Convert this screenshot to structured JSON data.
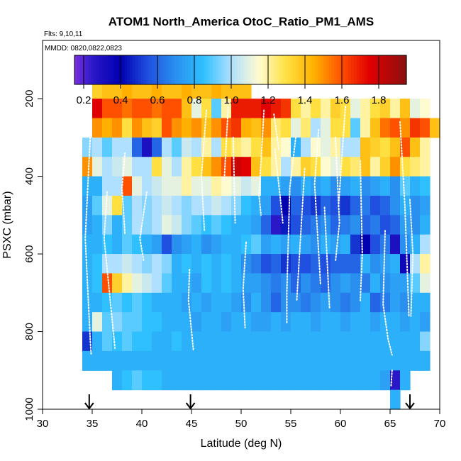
{
  "chart_data": {
    "type": "heatmap",
    "title": "ATOM1 North_America OtoC_Ratio_PM1_AMS",
    "flights_label": "Flts: 9,10,11",
    "dates_label": "MMDD: 0820,0822,0823",
    "xlabel": "Latitude (deg N)",
    "ylabel": "PSXC (mbar)",
    "xlim": [
      30,
      70
    ],
    "ylim": [
      1000,
      50
    ],
    "x_ticks": [
      30,
      35,
      40,
      45,
      50,
      55,
      60,
      65,
      70
    ],
    "y_ticks": [
      200,
      400,
      600,
      800,
      1000
    ],
    "colorbar": {
      "range": [
        0.15,
        1.95
      ],
      "ticks": [
        0.2,
        0.4,
        0.6,
        0.8,
        1.0,
        1.2,
        1.4,
        1.6,
        1.8
      ],
      "tick_labels": [
        "0.2",
        "0.4",
        "0.6",
        "0.8",
        "1.0",
        "1.2",
        "1.4",
        "1.6",
        "1.8"
      ],
      "stops": [
        [
          0.15,
          "#7b2fe0"
        ],
        [
          0.25,
          "#2a18c8"
        ],
        [
          0.4,
          "#0000b0"
        ],
        [
          0.55,
          "#2050e0"
        ],
        [
          0.7,
          "#2a90f0"
        ],
        [
          0.85,
          "#2fc0ff"
        ],
        [
          1.0,
          "#b0e0ff"
        ],
        [
          1.15,
          "#fffbd0"
        ],
        [
          1.3,
          "#ffe040"
        ],
        [
          1.45,
          "#ffb000"
        ],
        [
          1.6,
          "#ff5000"
        ],
        [
          1.75,
          "#e00000"
        ],
        [
          1.95,
          "#8a1010"
        ]
      ]
    },
    "arrow_latitudes": [
      34.7,
      44.9,
      67.0
    ],
    "cell_size": {
      "lat": 1.0,
      "pressure": 50
    },
    "rows": [
      {
        "p": 175,
        "start": 35,
        "values": [
          1.35,
          1.4,
          1.4,
          1.45,
          1.4,
          1.4,
          1.45,
          1.4,
          1.4,
          1.45,
          1.4,
          1.4,
          1.45,
          1.4,
          1.4,
          1.4
        ]
      },
      {
        "p": 225,
        "start": 35,
        "values": [
          1.75,
          1.6,
          1.6,
          1.55,
          1.6,
          1.6,
          1.55,
          1.6,
          1.6,
          1.4,
          1.1,
          1.3,
          0.9,
          1.2,
          1.7,
          1.7,
          1.7,
          1.75,
          1.7,
          1.65,
          1.3,
          1.2,
          1.3,
          1.2,
          1.35,
          1.3,
          1.1,
          1.2,
          1.3,
          1.35,
          1.2,
          1.4,
          1.1,
          1.15
        ]
      },
      {
        "p": 275,
        "start": 35,
        "values": [
          1.5,
          1.45,
          1.5,
          1.3,
          1.5,
          1.4,
          1.35,
          1.6,
          1.5,
          1.45,
          1.5,
          1.4,
          1.5,
          1.6,
          1.65,
          1.45,
          1.4,
          1.5,
          1.25,
          1.3,
          1.1,
          1.25,
          1.0,
          1.1,
          1.3,
          1.3,
          0.9,
          1.2,
          1.4,
          1.55,
          1.6,
          1.5,
          1.65,
          1.6,
          1.4
        ]
      },
      {
        "p": 325,
        "start": 34,
        "values": [
          0.95,
          1.0,
          0.9,
          1.0,
          1.0,
          0.6,
          0.3,
          0.6,
          1.0,
          0.9,
          1.05,
          1.0,
          1.2,
          1.0,
          1.3,
          1.25,
          1.2,
          1.3,
          1.4,
          1.2,
          1.15,
          0.8,
          1.0,
          1.15,
          1.1,
          1.2,
          1.0,
          1.0,
          1.4,
          1.35,
          1.3,
          1.4,
          1.6,
          1.4,
          1.2
        ]
      },
      {
        "p": 375,
        "start": 34,
        "values": [
          1.5,
          1.1,
          1.0,
          1.05,
          1.1,
          1.0,
          1.0,
          1.3,
          1.1,
          1.0,
          1.2,
          1.3,
          1.4,
          1.5,
          1.6,
          1.8,
          1.75,
          1.4,
          1.3,
          1.2,
          1.0,
          1.2,
          1.35,
          1.3,
          1.15,
          1.1,
          1.3,
          1.25,
          1.4,
          1.2,
          1.35,
          1.5,
          1.3,
          1.25,
          1.2
        ]
      },
      {
        "p": 425,
        "start": 34,
        "values": [
          0.8,
          0.8,
          1.0,
          1.0,
          1.6,
          1.1,
          1.0,
          1.05,
          1.1,
          1.1,
          1.2,
          1.1,
          1.1,
          1.2,
          1.15,
          1.1,
          1.05,
          1.1,
          0.8,
          0.8,
          0.75,
          0.7,
          0.8,
          0.75,
          0.8,
          0.7,
          0.75,
          0.8,
          0.7,
          0.75,
          0.8,
          0.7,
          0.9,
          0.8,
          0.85
        ]
      },
      {
        "p": 475,
        "start": 34,
        "values": [
          0.75,
          0.9,
          1.1,
          1.3,
          0.9,
          1.0,
          0.95,
          1.0,
          1.05,
          1.0,
          0.95,
          1.0,
          1.0,
          1.05,
          1.0,
          0.95,
          0.85,
          0.8,
          0.75,
          0.55,
          0.4,
          0.6,
          0.55,
          0.5,
          0.6,
          0.55,
          0.5,
          0.6,
          0.65,
          0.55,
          0.6,
          0.7,
          0.8,
          0.7,
          0.75
        ]
      },
      {
        "p": 525,
        "start": 34,
        "values": [
          0.75,
          0.8,
          0.95,
          0.8,
          0.9,
          1.0,
          0.95,
          1.0,
          1.1,
          1.05,
          0.95,
          0.9,
          0.85,
          0.9,
          0.85,
          0.8,
          0.8,
          0.75,
          0.6,
          0.25,
          0.45,
          0.55,
          0.6,
          0.65,
          0.7,
          0.6,
          0.65,
          0.7,
          0.6,
          0.65,
          0.55,
          0.6,
          0.75,
          0.7,
          0.8
        ]
      },
      {
        "p": 575,
        "start": 34,
        "values": [
          0.8,
          0.8,
          0.85,
          0.8,
          0.9,
          0.85,
          0.8,
          0.75,
          0.55,
          0.7,
          0.75,
          0.8,
          0.7,
          0.75,
          0.8,
          0.8,
          0.85,
          0.9,
          0.75,
          0.8,
          0.75,
          0.8,
          0.75,
          0.7,
          0.8,
          0.75,
          0.8,
          0.5,
          0.4,
          0.55,
          0.65,
          0.3,
          0.7,
          0.8,
          1.0
        ]
      },
      {
        "p": 625,
        "start": 34,
        "values": [
          0.8,
          0.85,
          1.0,
          1.0,
          1.05,
          1.0,
          0.95,
          1.0,
          0.95,
          0.8,
          0.85,
          0.8,
          0.85,
          0.8,
          0.85,
          0.8,
          0.7,
          0.65,
          0.55,
          0.6,
          0.5,
          0.55,
          0.55,
          0.6,
          0.55,
          0.6,
          0.6,
          0.6,
          0.8,
          0.7,
          0.75,
          0.8,
          0.35,
          1.0,
          1.2
        ]
      },
      {
        "p": 675,
        "start": 34,
        "values": [
          0.8,
          0.85,
          1.6,
          1.35,
          1.2,
          1.1,
          1.05,
          1.0,
          0.9,
          0.8,
          0.8,
          0.75,
          0.85,
          0.8,
          0.85,
          0.8,
          0.75,
          0.75,
          0.7,
          0.65,
          0.7,
          0.6,
          0.7,
          0.65,
          0.6,
          0.7,
          0.75,
          0.7,
          0.65,
          0.8,
          0.7,
          0.75,
          0.75,
          0.9,
          1.1
        ]
      },
      {
        "p": 725,
        "start": 34,
        "values": [
          0.8,
          0.8,
          0.85,
          0.9,
          0.85,
          0.9,
          0.85,
          0.8,
          0.8,
          0.8,
          0.75,
          0.8,
          0.75,
          0.8,
          0.8,
          0.75,
          0.7,
          0.8,
          0.7,
          0.6,
          0.7,
          0.7,
          0.65,
          0.7,
          0.75,
          0.7,
          0.65,
          0.7,
          0.8,
          0.6,
          0.65,
          0.75,
          0.7,
          0.8,
          0.8
        ]
      },
      {
        "p": 775,
        "start": 34,
        "values": [
          0.8,
          1.1,
          0.9,
          0.95,
          0.9,
          0.9,
          0.85,
          0.85,
          0.8,
          0.8,
          0.8,
          0.75,
          0.8,
          0.8,
          0.75,
          0.8,
          0.8,
          0.75,
          0.75,
          0.8,
          0.75,
          0.8,
          0.8,
          0.75,
          0.8,
          0.8,
          0.75,
          0.8,
          0.8,
          0.75,
          0.8,
          0.8,
          0.75,
          0.8,
          0.75
        ]
      },
      {
        "p": 825,
        "start": 34,
        "values": [
          0.5,
          0.8,
          0.9,
          0.85,
          0.9,
          0.85,
          0.85,
          0.8,
          0.8,
          0.85,
          0.8,
          0.8,
          0.8,
          0.8,
          0.8,
          0.8,
          0.8,
          0.8,
          0.8,
          0.8,
          0.8,
          0.8,
          0.8,
          0.8,
          0.8,
          0.8,
          0.8,
          0.8,
          0.8,
          0.8,
          0.8,
          0.8,
          0.8,
          0.8,
          0.95
        ]
      },
      {
        "p": 875,
        "start": 34,
        "values": [
          0.8,
          0.8,
          0.8,
          0.8,
          0.8,
          0.8,
          0.8,
          0.8,
          0.8,
          0.8,
          0.8,
          0.8,
          0.8,
          0.8,
          0.8,
          0.8,
          0.8,
          0.8,
          0.8,
          0.8,
          0.8,
          0.8,
          0.8,
          0.8,
          0.8,
          0.8,
          0.8,
          0.8,
          0.8,
          0.8,
          0.8,
          0.8,
          0.8,
          0.8,
          0.8
        ]
      },
      {
        "p": 925,
        "start": 37,
        "values": [
          0.8,
          0.85,
          0.9,
          0.85,
          0.85,
          0.8,
          0.8,
          0.8,
          0.8,
          0.8,
          0.8,
          0.8,
          0.8,
          0.8,
          0.8,
          0.8,
          0.8,
          0.8,
          0.8,
          0.8,
          0.8,
          0.8,
          0.8,
          0.8,
          0.8,
          0.8,
          0.8,
          0.75,
          0.25,
          0.8
        ]
      },
      {
        "p": 975,
        "start": 65,
        "values": [
          0.8
        ]
      }
    ],
    "profiles": [
      [
        [
          34.8,
          300
        ],
        [
          34.3,
          560
        ],
        [
          34.8,
          820
        ],
        [
          34.9,
          860
        ]
      ],
      [
        [
          36.5,
          440
        ],
        [
          36.2,
          560
        ],
        [
          37.3,
          845
        ]
      ],
      [
        [
          38.3,
          340
        ],
        [
          38.0,
          430
        ],
        [
          38.3,
          550
        ]
      ],
      [
        [
          40.5,
          440
        ],
        [
          39.8,
          560
        ],
        [
          40.2,
          620
        ]
      ],
      [
        [
          44.8,
          640
        ],
        [
          44.7,
          720
        ],
        [
          45.2,
          850
        ]
      ],
      [
        [
          46.5,
          230
        ],
        [
          46.0,
          400
        ],
        [
          46.3,
          540
        ]
      ],
      [
        [
          48.7,
          220
        ],
        [
          48.3,
          410
        ]
      ],
      [
        [
          49.2,
          300
        ],
        [
          49.4,
          520
        ]
      ],
      [
        [
          50.5,
          570
        ],
        [
          50.2,
          690
        ],
        [
          50.4,
          790
        ]
      ],
      [
        [
          52.3,
          230
        ],
        [
          51.8,
          450
        ],
        [
          52.0,
          500
        ]
      ],
      [
        [
          53.3,
          240
        ],
        [
          53.8,
          330
        ]
      ],
      [
        [
          53.4,
          330
        ],
        [
          54.0,
          470
        ],
        [
          54.2,
          520
        ]
      ],
      [
        [
          55.5,
          300
        ],
        [
          54.9,
          430
        ],
        [
          54.6,
          700
        ],
        [
          54.6,
          780
        ]
      ],
      [
        [
          56.4,
          380
        ],
        [
          55.6,
          720
        ]
      ],
      [
        [
          57.8,
          280
        ],
        [
          57.4,
          420
        ],
        [
          58.0,
          680
        ]
      ],
      [
        [
          58.4,
          480
        ],
        [
          58.9,
          740
        ]
      ],
      [
        [
          59.5,
          300
        ],
        [
          59.9,
          520
        ],
        [
          59.5,
          620
        ]
      ],
      [
        [
          60.5,
          220
        ],
        [
          59.8,
          480
        ]
      ],
      [
        [
          62.0,
          360
        ],
        [
          62.2,
          600
        ],
        [
          62.0,
          720
        ]
      ],
      [
        [
          64.5,
          540
        ],
        [
          64.3,
          730
        ],
        [
          64.8,
          820
        ],
        [
          65.2,
          860
        ]
      ],
      [
        [
          65.2,
          900
        ],
        [
          65.1,
          940
        ]
      ],
      [
        [
          66.0,
          260
        ],
        [
          66.5,
          480
        ],
        [
          66.9,
          760
        ]
      ],
      [
        [
          67.0,
          460
        ],
        [
          67.3,
          600
        ],
        [
          67.1,
          760
        ]
      ]
    ]
  }
}
